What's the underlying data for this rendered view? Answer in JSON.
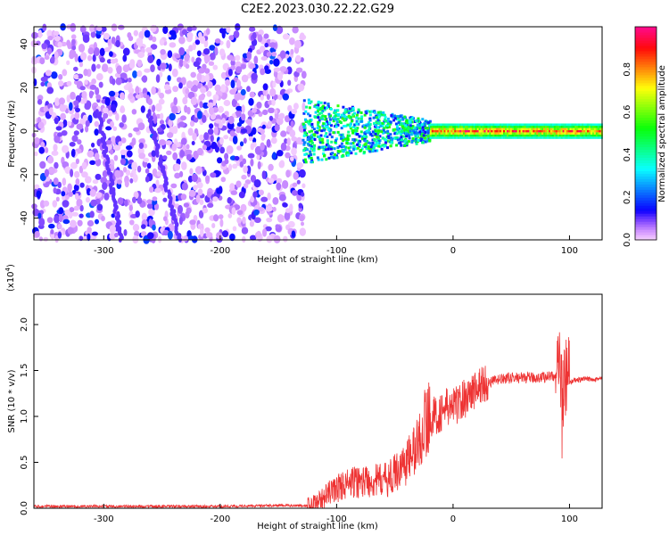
{
  "title": "C2E2.2023.030.22.22.G29",
  "chart_data": [
    {
      "type": "heatmap",
      "xlabel": "Height of straight line (km)",
      "ylabel": "Frequency (Hz)",
      "xlim": [
        -360,
        128
      ],
      "ylim": [
        -50,
        48
      ],
      "xticks": [
        -300,
        -200,
        -100,
        0,
        100
      ],
      "xtick_labels": [
        "-300",
        "-200",
        "-100",
        "0",
        "100"
      ],
      "yticks": [
        -40,
        -20,
        0,
        20,
        40
      ],
      "ytick_labels": [
        "-40",
        "-20",
        "0",
        "20",
        "40"
      ],
      "grid": false,
      "colorbar": {
        "label": "Normalized spectral amplitude",
        "range": [
          0,
          1
        ],
        "ticks": [
          0.0,
          0.2,
          0.4,
          0.6,
          0.8
        ],
        "tick_labels": [
          "0.0",
          "0.2",
          "0.4",
          "0.6",
          "0.8"
        ],
        "colormap": "rainbow (purple-blue-cyan-green-yellow-red-magenta)"
      },
      "regions": [
        {
          "x_range": [
            -360,
            -130
          ],
          "freq_range": [
            -50,
            48
          ],
          "amplitude": "low (0.0-0.2), scattered noise"
        },
        {
          "x_range": [
            -130,
            -20
          ],
          "freq_range": [
            -12,
            14
          ],
          "amplitude": "0.2-0.6, broadening band around 0 Hz"
        },
        {
          "x_range": [
            -20,
            128
          ],
          "freq_range": [
            -3,
            3
          ],
          "amplitude": "0.5-1.0, narrow band around 0 Hz"
        }
      ]
    },
    {
      "type": "line",
      "xlabel": "Height of straight line (km)",
      "ylabel": "SNR (10 * v/v)",
      "scale_label": "(x10",
      "scale_exponent": "4",
      "scale_suffix": ")",
      "xlim": [
        -360,
        128
      ],
      "ylim": [
        0,
        2.33
      ],
      "xticks": [
        -300,
        -200,
        -100,
        0,
        100
      ],
      "xtick_labels": [
        "-300",
        "-200",
        "-100",
        "0",
        "100"
      ],
      "yticks": [
        0.0,
        0.5,
        1.0,
        1.5,
        2.0
      ],
      "ytick_labels": [
        "0.0",
        "0.5",
        "1.0",
        "1.5",
        "2.0"
      ],
      "grid": false,
      "series": [
        {
          "color": "#ee3333",
          "x": [
            -360,
            -300,
            -250,
            -200,
            -150,
            -125,
            -115,
            -105,
            -95,
            -85,
            -75,
            -65,
            -55,
            -45,
            -40,
            -35,
            -30,
            -25,
            -20,
            -15,
            -10,
            -5,
            0,
            5,
            10,
            15,
            20,
            25,
            30,
            40,
            50,
            60,
            70,
            80,
            85,
            90,
            93,
            95,
            97,
            100,
            110,
            120,
            128
          ],
          "y": [
            0.02,
            0.02,
            0.02,
            0.02,
            0.03,
            0.03,
            0.08,
            0.18,
            0.25,
            0.28,
            0.3,
            0.3,
            0.32,
            0.45,
            0.5,
            0.6,
            0.7,
            0.9,
            1.0,
            1.0,
            1.05,
            1.1,
            1.1,
            1.15,
            1.2,
            1.25,
            1.3,
            1.35,
            1.37,
            1.4,
            1.42,
            1.42,
            1.42,
            1.43,
            1.45,
            1.4,
            1.5,
            1.2,
            1.4,
            1.38,
            1.4,
            1.41,
            1.41
          ]
        }
      ]
    }
  ]
}
